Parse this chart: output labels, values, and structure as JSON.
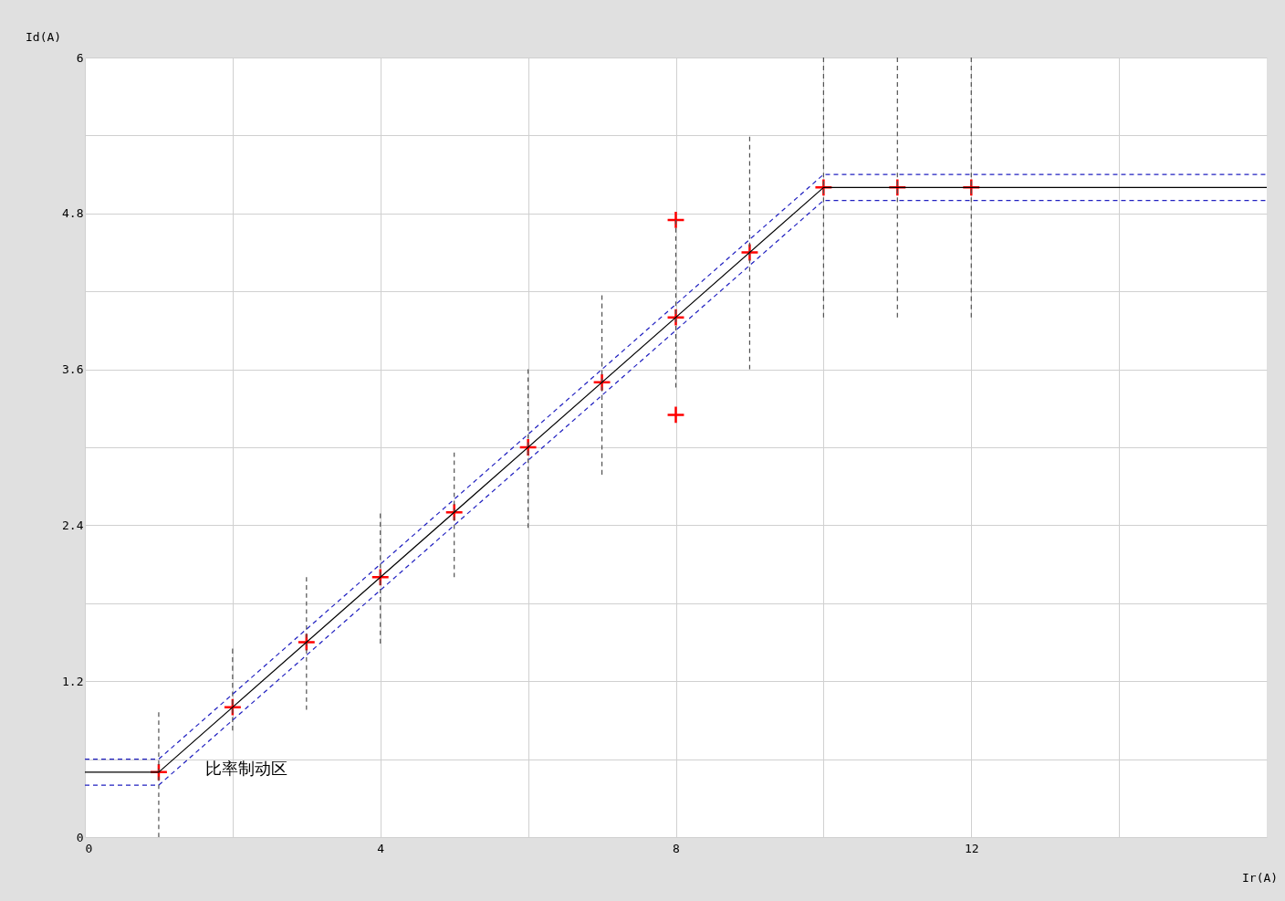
{
  "chart_data": {
    "type": "line",
    "xlabel": "Ir(A)",
    "ylabel": "Id(A)",
    "xlim": [
      0,
      16
    ],
    "ylim": [
      0,
      6
    ],
    "xticks": [
      0,
      {
        "value": 2,
        "label": null
      },
      4,
      {
        "value": 6,
        "label": null
      },
      8,
      {
        "value": 10,
        "label": null
      },
      12,
      {
        "value": 14,
        "label": null
      }
    ],
    "yticks": [
      0,
      {
        "value": 0.6,
        "label": null
      },
      1.2,
      {
        "value": 1.8,
        "label": null
      },
      2.4,
      {
        "value": 3.0,
        "label": null
      },
      3.6,
      {
        "value": 4.2,
        "label": null
      },
      4.8,
      {
        "value": 5.4,
        "label": null
      },
      6
    ],
    "grid": true,
    "series": [
      {
        "type": "line",
        "color": "#505050",
        "line_style": "dashed",
        "x": [
          1,
          1
        ],
        "values": [
          0,
          0.96
        ]
      },
      {
        "type": "line",
        "color": "#505050",
        "line_style": "dashed",
        "x": [
          2,
          2
        ],
        "values": [
          0.82,
          1.45
        ]
      },
      {
        "type": "line",
        "color": "#505050",
        "line_style": "dashed",
        "x": [
          3,
          3
        ],
        "values": [
          0.98,
          2.0
        ]
      },
      {
        "type": "line",
        "color": "#505050",
        "line_style": "dashed",
        "x": [
          4,
          4
        ],
        "values": [
          1.49,
          2.49
        ]
      },
      {
        "type": "line",
        "color": "#505050",
        "line_style": "dashed",
        "x": [
          5,
          5
        ],
        "values": [
          2.0,
          2.96
        ]
      },
      {
        "type": "line",
        "color": "#505050",
        "line_style": "dashed",
        "x": [
          6,
          6
        ],
        "values": [
          2.38,
          3.6
        ]
      },
      {
        "type": "line",
        "color": "#505050",
        "line_style": "dashed",
        "x": [
          7,
          7
        ],
        "values": [
          2.79,
          4.17
        ]
      },
      {
        "type": "line",
        "color": "#505050",
        "line_style": "dashed",
        "x": [
          8,
          8
        ],
        "values": [
          3.46,
          4.75
        ]
      },
      {
        "type": "line",
        "color": "#505050",
        "line_style": "dashed",
        "x": [
          9,
          9
        ],
        "values": [
          3.6,
          5.39
        ]
      },
      {
        "type": "line",
        "color": "#505050",
        "line_style": "dashed",
        "x": [
          10,
          10
        ],
        "values": [
          4.0,
          6.0
        ]
      },
      {
        "type": "line",
        "color": "#505050",
        "line_style": "dashed",
        "x": [
          11,
          11
        ],
        "values": [
          4.0,
          6.0
        ]
      },
      {
        "type": "line",
        "color": "#505050",
        "line_style": "dashed",
        "x": [
          12,
          12
        ],
        "values": [
          4.0,
          6.0
        ]
      },
      {
        "type": "line",
        "color": "#2020c0",
        "line_style": "dashed",
        "x": [
          0,
          1,
          10,
          16
        ],
        "values": [
          0.6,
          0.6,
          5.1,
          5.1
        ]
      },
      {
        "type": "line",
        "color": "#2020c0",
        "line_style": "dashed",
        "x": [
          0,
          1,
          10,
          16
        ],
        "values": [
          0.4,
          0.4,
          4.9,
          4.9
        ]
      },
      {
        "type": "line",
        "color": "#000000",
        "line_style": "solid",
        "x": [
          0,
          1,
          10,
          16
        ],
        "values": [
          0.5,
          0.5,
          5.0,
          5.0
        ]
      },
      {
        "type": "scatter",
        "color": "#ff0000",
        "marker": "cross",
        "x": [
          1,
          2,
          3,
          4,
          5,
          6,
          7,
          8,
          8,
          8,
          9,
          10,
          11,
          12
        ],
        "values": [
          0.5,
          1.0,
          1.5,
          2.0,
          2.5,
          3.0,
          3.5,
          4.0,
          4.75,
          3.25,
          4.5,
          5.0,
          5.0,
          5.0
        ]
      }
    ],
    "annotations": [
      "比率制动区"
    ]
  }
}
